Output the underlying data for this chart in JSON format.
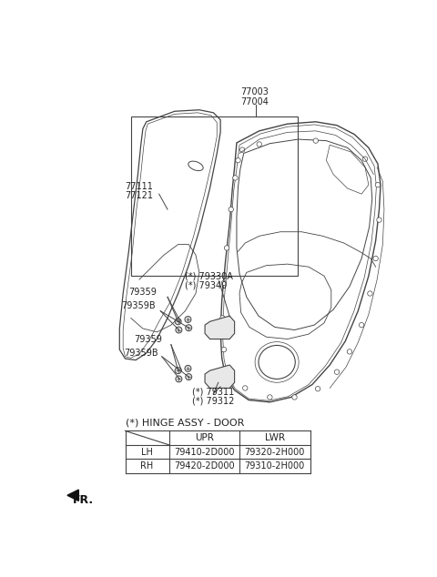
{
  "bg_color": "#ffffff",
  "line_color": "#444444",
  "text_color": "#222222",
  "table_title": "(*) HINGE ASSY - DOOR",
  "table_headers": [
    "",
    "UPR",
    "LWR"
  ],
  "table_rows": [
    [
      "LH",
      "79410-2D000",
      "79320-2H000"
    ],
    [
      "RH",
      "79420-2D000",
      "79310-2H000"
    ]
  ],
  "label_77003": "77003",
  "label_77004": "77004",
  "label_77111": "77111",
  "label_77121": "77121",
  "label_79330A": "(*) 79330A",
  "label_79340": "(*) 79340",
  "label_79359_u": "79359",
  "label_79359B_u": "79359B",
  "label_79359_l": "79359",
  "label_79359B_l": "79359B",
  "label_79311": "(*) 79311",
  "label_79312": "(*) 79312",
  "fr_label": "FR."
}
